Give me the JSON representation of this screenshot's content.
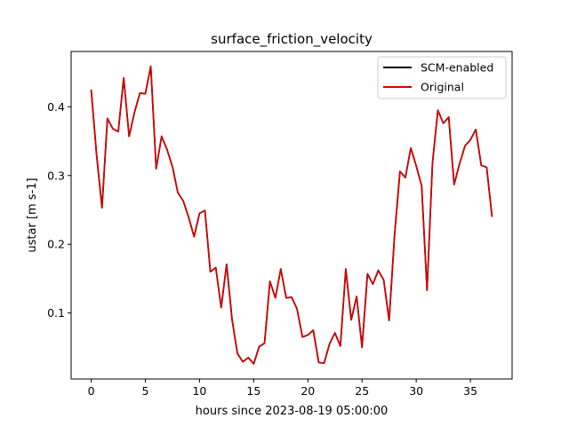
{
  "chart_data": {
    "type": "line",
    "title": "surface_friction_velocity",
    "xlabel": "hours since 2023-08-19 05:00:00",
    "ylabel": "ustar [m s-1]",
    "xlim": [
      -1.85,
      38.85
    ],
    "ylim": [
      0.004,
      0.4805
    ],
    "xticks": [
      0,
      5,
      10,
      15,
      20,
      25,
      30,
      35
    ],
    "yticks": [
      0.1,
      0.2,
      0.3,
      0.4
    ],
    "xtick_labels": [
      "0",
      "5",
      "10",
      "15",
      "20",
      "25",
      "30",
      "35"
    ],
    "ytick_labels": [
      "0.1",
      "0.2",
      "0.3",
      "0.4"
    ],
    "grid": false,
    "legend_position": "top-right",
    "x": [
      0,
      0.5,
      1,
      1.5,
      2,
      2.5,
      3,
      3.5,
      4,
      4.5,
      5,
      5.5,
      6,
      6.5,
      7,
      7.5,
      8,
      8.5,
      9,
      9.5,
      10,
      10.5,
      11,
      11.5,
      12,
      12.5,
      13,
      13.5,
      14,
      14.5,
      15,
      15.5,
      16,
      16.5,
      17,
      17.5,
      18,
      18.5,
      19,
      19.5,
      20,
      20.5,
      21,
      21.5,
      22,
      22.5,
      23,
      23.5,
      24,
      24.5,
      25,
      25.5,
      26,
      26.5,
      27,
      27.5,
      28,
      28.5,
      29,
      29.5,
      30,
      30.5,
      31,
      31.5,
      32,
      32.5,
      33,
      33.5,
      34,
      34.5,
      35,
      35.5,
      36,
      36.5,
      37
    ],
    "series": [
      {
        "name": "SCM-enabled",
        "color": "#000000",
        "values": [
          0.425,
          0.33,
          0.253,
          0.383,
          0.368,
          0.364,
          0.442,
          0.357,
          0.392,
          0.42,
          0.419,
          0.459,
          0.31,
          0.357,
          0.338,
          0.313,
          0.275,
          0.263,
          0.239,
          0.211,
          0.245,
          0.249,
          0.16,
          0.166,
          0.108,
          0.171,
          0.091,
          0.041,
          0.029,
          0.035,
          0.026,
          0.051,
          0.056,
          0.146,
          0.122,
          0.164,
          0.122,
          0.123,
          0.106,
          0.065,
          0.068,
          0.075,
          0.028,
          0.027,
          0.055,
          0.071,
          0.052,
          0.164,
          0.09,
          0.124,
          0.05,
          0.157,
          0.142,
          0.162,
          0.148,
          0.089,
          0.213,
          0.306,
          0.297,
          0.34,
          0.314,
          0.285,
          0.133,
          0.318,
          0.395,
          0.376,
          0.385,
          0.287,
          0.317,
          0.343,
          0.352,
          0.367,
          0.315,
          0.312,
          0.24
        ]
      },
      {
        "name": "Original",
        "color": "#d40000",
        "values": [
          0.425,
          0.33,
          0.253,
          0.383,
          0.368,
          0.364,
          0.442,
          0.357,
          0.392,
          0.42,
          0.419,
          0.459,
          0.31,
          0.357,
          0.338,
          0.313,
          0.275,
          0.263,
          0.239,
          0.211,
          0.245,
          0.249,
          0.16,
          0.166,
          0.108,
          0.171,
          0.091,
          0.041,
          0.029,
          0.035,
          0.026,
          0.051,
          0.056,
          0.146,
          0.122,
          0.164,
          0.122,
          0.123,
          0.106,
          0.065,
          0.068,
          0.075,
          0.028,
          0.027,
          0.055,
          0.071,
          0.052,
          0.164,
          0.09,
          0.124,
          0.05,
          0.157,
          0.142,
          0.162,
          0.148,
          0.089,
          0.213,
          0.306,
          0.297,
          0.34,
          0.314,
          0.285,
          0.133,
          0.318,
          0.395,
          0.376,
          0.385,
          0.287,
          0.317,
          0.343,
          0.352,
          0.367,
          0.315,
          0.312,
          0.24
        ]
      }
    ]
  }
}
